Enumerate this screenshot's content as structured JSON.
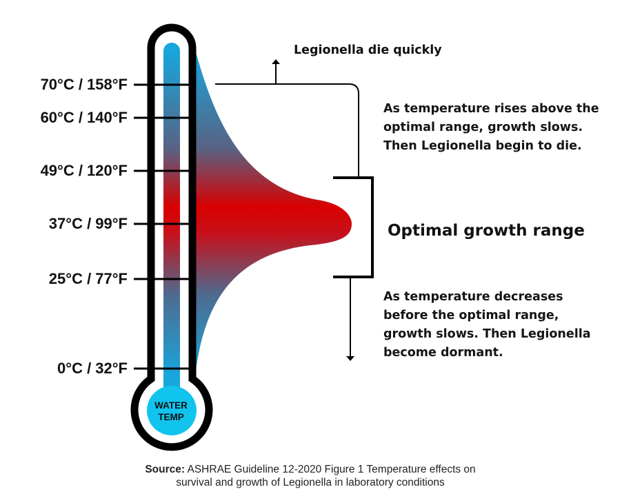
{
  "thermometer": {
    "ticks": [
      {
        "label": "70°C / 158°F",
        "celsius": 70,
        "fahrenheit": 158
      },
      {
        "label": "60°C / 140°F",
        "celsius": 60,
        "fahrenheit": 140
      },
      {
        "label": "49°C / 120°F",
        "celsius": 49,
        "fahrenheit": 120
      },
      {
        "label": "37°C / 99°F",
        "celsius": 37,
        "fahrenheit": 99
      },
      {
        "label": "25°C / 77°F",
        "celsius": 25,
        "fahrenheit": 77
      },
      {
        "label": "0°C / 32°F",
        "celsius": 0,
        "fahrenheit": 32
      }
    ],
    "bulb_label_line1": "WATER",
    "bulb_label_line2": "TEMP"
  },
  "annotations": {
    "die_quickly": "Legionella die quickly",
    "above_range": [
      "As temperature rises above the",
      "optimal range, growth slows.",
      "Then Legionella begin to die."
    ],
    "optimal": "Optimal growth range",
    "below_range": [
      "As temperature decreases",
      "before the optimal range,",
      "growth slows. Then Legionella",
      "become dormant."
    ]
  },
  "source": {
    "label": "Source:",
    "line1": "ASHRAE Guideline 12-2020 Figure 1 Temperature effects on",
    "line2": "survival and growth of Legionella in laboratory conditions"
  },
  "colors": {
    "hot": "#d90000",
    "cold": "#18a6dc",
    "bulb": "#10c4ee",
    "outline": "#000000"
  }
}
